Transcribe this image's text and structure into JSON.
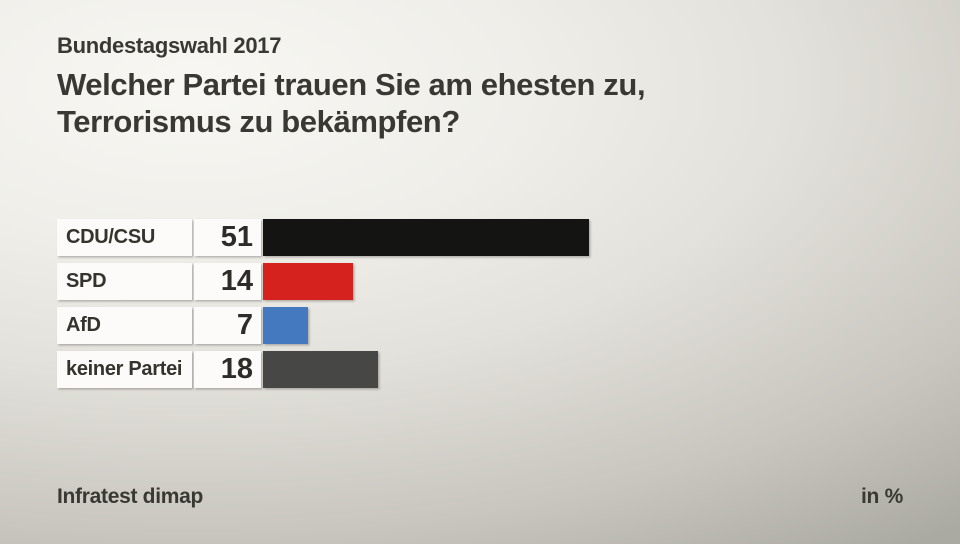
{
  "header": {
    "kicker": "Bundestagswahl 2017",
    "question_line1": "Welcher Partei trauen Sie am ehesten zu,",
    "question_line2": "Terrorismus zu bekämpfen?"
  },
  "footer": {
    "source": "Infratest dimap",
    "unit": "in %"
  },
  "colors": {
    "text": "#393833",
    "box_background": "#fcfbf9",
    "cdu_csu": "#141413",
    "spd": "#d6221e",
    "afd": "#4478bf",
    "keine_partei": "#474746"
  },
  "chart_data": {
    "type": "bar",
    "orientation": "horizontal",
    "title": "Welcher Partei trauen Sie am ehesten zu, Terrorismus zu bekämpfen?",
    "subtitle": "Bundestagswahl 2017",
    "categories": [
      "CDU/CSU",
      "SPD",
      "AfD",
      "keiner Partei"
    ],
    "values": [
      51,
      14,
      7,
      18
    ],
    "bar_colors": [
      "#141413",
      "#d6221e",
      "#4478bf",
      "#474746"
    ],
    "unit": "in %",
    "source": "Infratest dimap",
    "xlim": [
      0,
      51
    ],
    "grid": false,
    "legend": false
  }
}
